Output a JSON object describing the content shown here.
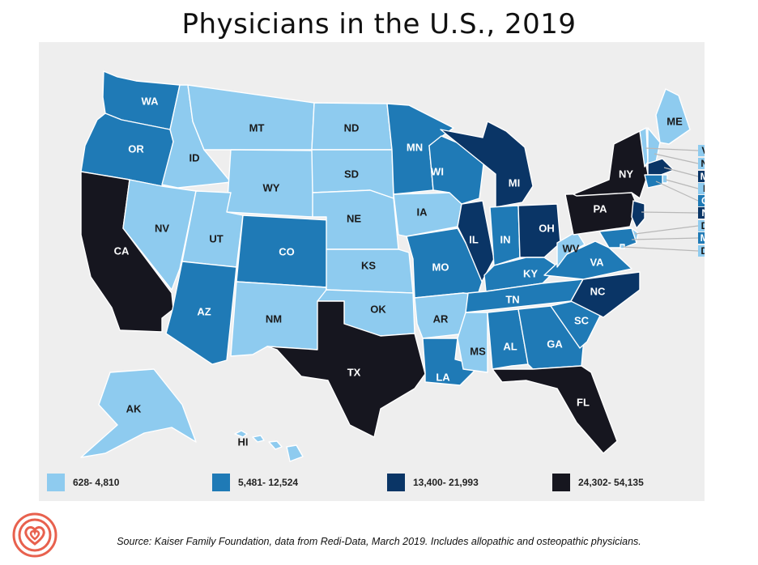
{
  "title": "Physicians in the U.S., 2019",
  "source": "Source: Kaiser Family Foundation, data from Redi-Data, March 2019. Includes allopathic and osteopathic physicians.",
  "legend": [
    {
      "label": "628- 4,810",
      "color": "#8ecbef",
      "tier": 1
    },
    {
      "label": "5,481- 12,524",
      "color": "#1f7ab6",
      "tier": 2
    },
    {
      "label": "13,400- 21,993",
      "color": "#0a3566",
      "tier": 3
    },
    {
      "label": "24,302- 54,135",
      "color": "#16161f",
      "tier": 4
    }
  ],
  "states": [
    {
      "abbr": "WA",
      "tier": 2
    },
    {
      "abbr": "OR",
      "tier": 2
    },
    {
      "abbr": "CA",
      "tier": 4
    },
    {
      "abbr": "ID",
      "tier": 1
    },
    {
      "abbr": "NV",
      "tier": 1
    },
    {
      "abbr": "MT",
      "tier": 1
    },
    {
      "abbr": "WY",
      "tier": 1
    },
    {
      "abbr": "UT",
      "tier": 1
    },
    {
      "abbr": "AZ",
      "tier": 2
    },
    {
      "abbr": "CO",
      "tier": 2
    },
    {
      "abbr": "NM",
      "tier": 1
    },
    {
      "abbr": "ND",
      "tier": 1
    },
    {
      "abbr": "SD",
      "tier": 1
    },
    {
      "abbr": "NE",
      "tier": 1
    },
    {
      "abbr": "KS",
      "tier": 1
    },
    {
      "abbr": "OK",
      "tier": 1
    },
    {
      "abbr": "TX",
      "tier": 4
    },
    {
      "abbr": "MN",
      "tier": 2
    },
    {
      "abbr": "IA",
      "tier": 1
    },
    {
      "abbr": "MO",
      "tier": 2
    },
    {
      "abbr": "AR",
      "tier": 1
    },
    {
      "abbr": "LA",
      "tier": 2
    },
    {
      "abbr": "WI",
      "tier": 2
    },
    {
      "abbr": "IL",
      "tier": 3
    },
    {
      "abbr": "MI",
      "tier": 3
    },
    {
      "abbr": "IN",
      "tier": 2
    },
    {
      "abbr": "OH",
      "tier": 3
    },
    {
      "abbr": "KY",
      "tier": 2
    },
    {
      "abbr": "TN",
      "tier": 2
    },
    {
      "abbr": "MS",
      "tier": 1
    },
    {
      "abbr": "AL",
      "tier": 2
    },
    {
      "abbr": "GA",
      "tier": 2
    },
    {
      "abbr": "FL",
      "tier": 4
    },
    {
      "abbr": "SC",
      "tier": 2
    },
    {
      "abbr": "NC",
      "tier": 3
    },
    {
      "abbr": "VA",
      "tier": 2
    },
    {
      "abbr": "WV",
      "tier": 1
    },
    {
      "abbr": "PA",
      "tier": 4
    },
    {
      "abbr": "NY",
      "tier": 4
    },
    {
      "abbr": "ME",
      "tier": 1
    },
    {
      "abbr": "AK",
      "tier": 1
    },
    {
      "abbr": "HI",
      "tier": 1
    },
    {
      "abbr": "VT",
      "tier": 1
    },
    {
      "abbr": "NH",
      "tier": 1
    },
    {
      "abbr": "MA",
      "tier": 3
    },
    {
      "abbr": "RI",
      "tier": 1
    },
    {
      "abbr": "CT",
      "tier": 2
    },
    {
      "abbr": "NJ",
      "tier": 3
    },
    {
      "abbr": "DE",
      "tier": 1
    },
    {
      "abbr": "MD",
      "tier": 2
    },
    {
      "abbr": "DC",
      "tier": 1
    }
  ]
}
